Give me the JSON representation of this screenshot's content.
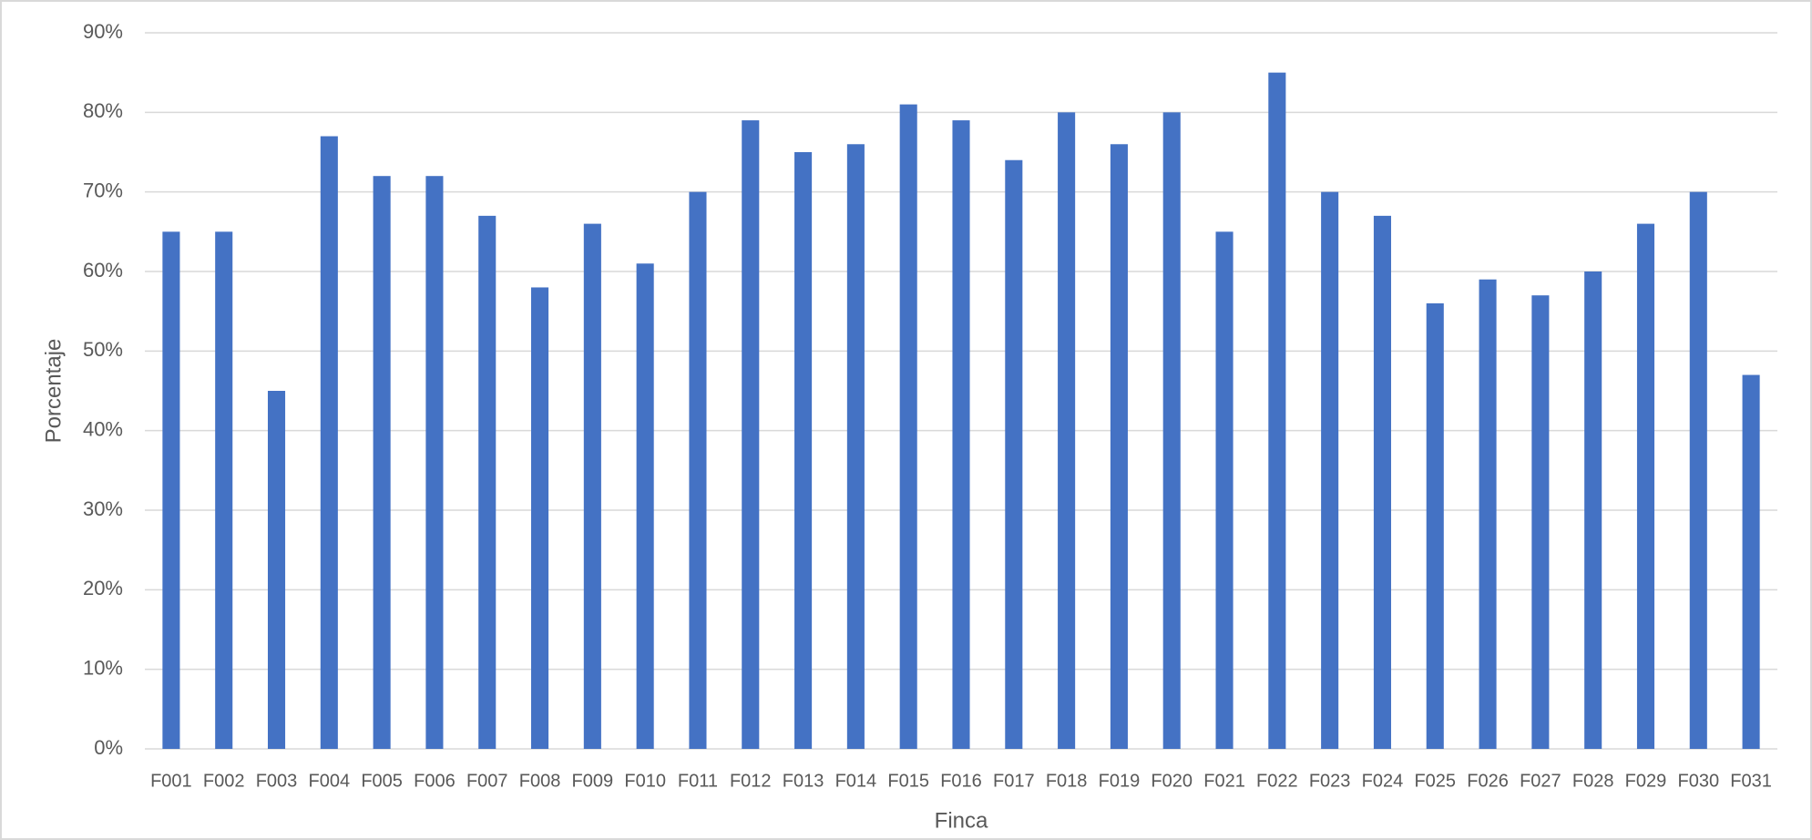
{
  "chart_data": {
    "type": "bar",
    "categories": [
      "F001",
      "F002",
      "F003",
      "F004",
      "F005",
      "F006",
      "F007",
      "F008",
      "F009",
      "F010",
      "F011",
      "F012",
      "F013",
      "F014",
      "F015",
      "F016",
      "F017",
      "F018",
      "F019",
      "F020",
      "F021",
      "F022",
      "F023",
      "F024",
      "F025",
      "F026",
      "F027",
      "F028",
      "F029",
      "F030",
      "F031"
    ],
    "values": [
      65,
      65,
      45,
      77,
      72,
      72,
      67,
      58,
      66,
      61,
      70,
      79,
      75,
      76,
      81,
      79,
      74,
      80,
      76,
      80,
      65,
      85,
      70,
      67,
      56,
      59,
      57,
      60,
      66,
      70,
      47
    ],
    "color": "#4472c4",
    "x_label": "Finca",
    "y_label": "Porcentaje",
    "ylim": [
      0,
      90
    ],
    "yticks": [
      {
        "value": 0,
        "label": "0%"
      },
      {
        "value": 10,
        "label": "10%"
      },
      {
        "value": 20,
        "label": "20%"
      },
      {
        "value": 30,
        "label": "30%"
      },
      {
        "value": 40,
        "label": "40%"
      },
      {
        "value": 50,
        "label": "50%"
      },
      {
        "value": 60,
        "label": "60%"
      },
      {
        "value": 70,
        "label": "70%"
      },
      {
        "value": 80,
        "label": "80%"
      },
      {
        "value": 90,
        "label": "90%"
      }
    ],
    "grid": true
  }
}
